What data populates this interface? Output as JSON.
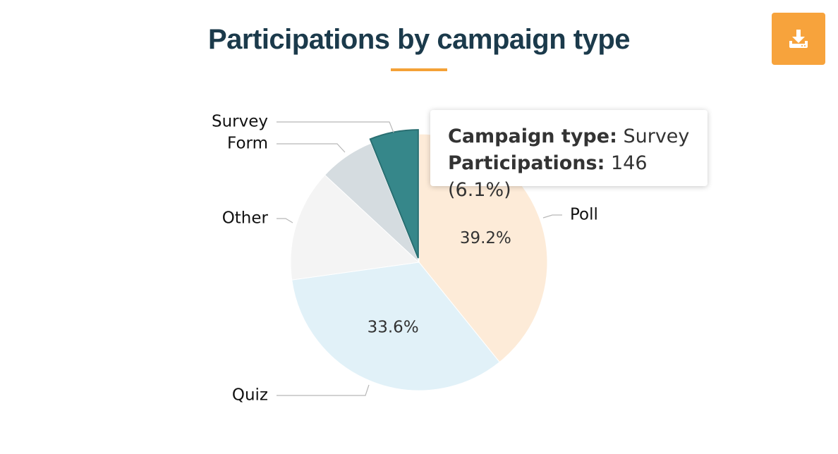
{
  "header": {
    "title": "Participations by campaign type",
    "download_icon": "download-icon",
    "accent_color": "#f4a137"
  },
  "tooltip": {
    "label1": "Campaign type:",
    "value1": "Survey",
    "label2": "Participations:",
    "value2": "146 (6.1%)"
  },
  "chart_data": {
    "type": "pie",
    "title": "Participations by campaign type",
    "slices": [
      {
        "label": "Poll",
        "percent": 39.2,
        "show_percent": true,
        "color": "#fdebd8"
      },
      {
        "label": "Quiz",
        "percent": 33.6,
        "show_percent": true,
        "color": "#e1f1f8"
      },
      {
        "label": "Other",
        "percent": 14.1,
        "show_percent": false,
        "color": "#f4f4f4"
      },
      {
        "label": "Form",
        "percent": 7.0,
        "show_percent": false,
        "color": "#d5dce0"
      },
      {
        "label": "Survey",
        "percent": 6.1,
        "show_percent": false,
        "color": "#36878a",
        "value": 146,
        "highlighted": true
      }
    ],
    "legend": "none"
  }
}
